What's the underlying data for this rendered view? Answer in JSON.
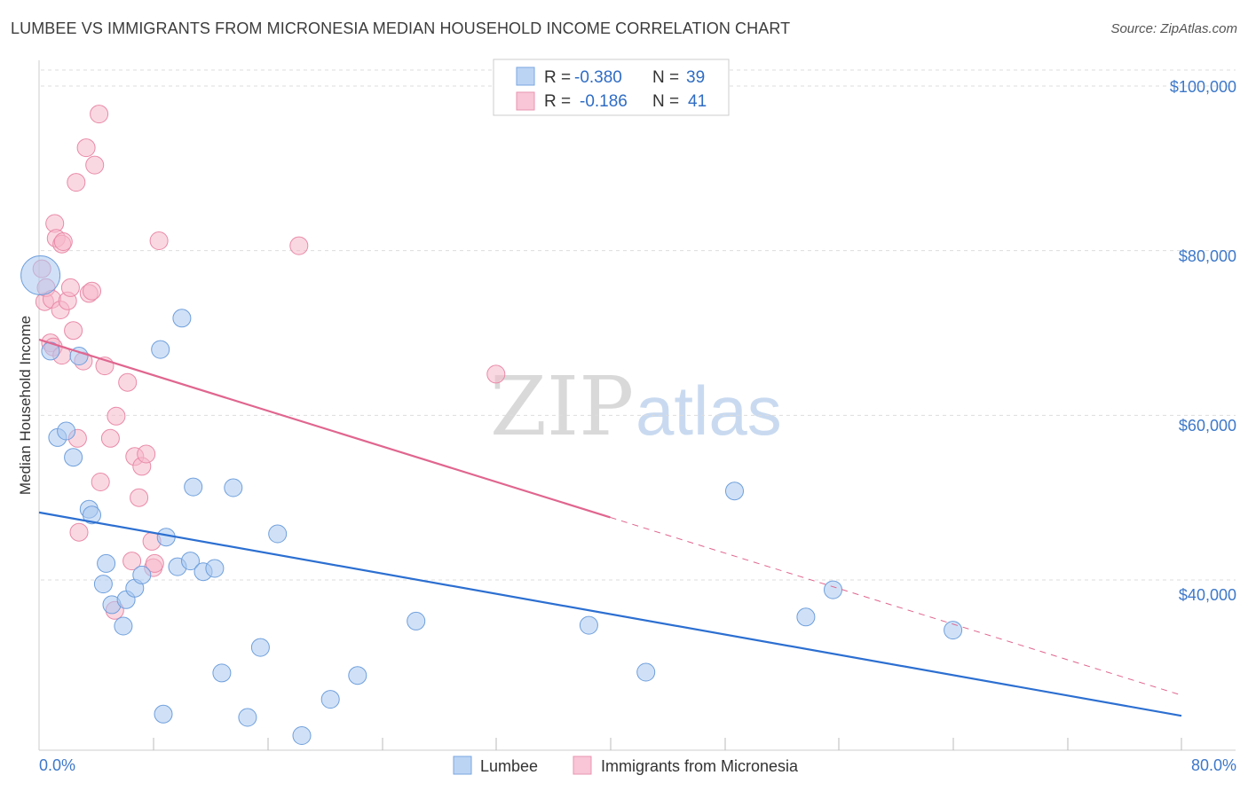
{
  "header": {
    "title": "LUMBEE VS IMMIGRANTS FROM MICRONESIA MEDIAN HOUSEHOLD INCOME CORRELATION CHART",
    "source": "Source: ZipAtlas.com"
  },
  "watermark": {
    "part1": "ZIP",
    "part2": "atlas"
  },
  "colors": {
    "lumbee_fill": "#a9c8f0",
    "lumbee_stroke": "#6f9fdc",
    "lumbee_line": "#2c6fd1",
    "micronesia_fill": "#f6b8cb",
    "micronesia_stroke": "#e98aa8",
    "micronesia_line": "#e0668f",
    "grid": "#dddddd",
    "axis_text": "#3d78c9"
  },
  "legend": {
    "rows": [
      {
        "r_label": "R =",
        "r_value": "-0.380",
        "n_label": "N =",
        "n_value": "39"
      },
      {
        "r_label": "R =",
        "r_value": "-0.186",
        "n_label": "N =",
        "n_value": "41"
      }
    ]
  },
  "chart_data": {
    "type": "scatter",
    "title": "LUMBEE VS IMMIGRANTS FROM MICRONESIA MEDIAN HOUSEHOLD INCOME CORRELATION CHART",
    "xlabel": "",
    "ylabel": "Median Household Income",
    "xlim": [
      0,
      80
    ],
    "ylim": [
      20000,
      104000
    ],
    "x_tick_labels": [
      "0.0%",
      "80.0%"
    ],
    "y_ticks": [
      40000,
      60000,
      80000,
      100000
    ],
    "y_tick_labels": [
      "$40,000",
      "$60,000",
      "$80,000",
      "$100,000"
    ],
    "grid": true,
    "legend_position": "bottom-center",
    "series": [
      {
        "name": "Lumbee",
        "r": -0.38,
        "n": 39,
        "trend": {
          "x0": 0,
          "y0": 48200,
          "x1": 80,
          "y1": 23500,
          "solid_until": 80
        },
        "points": [
          [
            0.1,
            77000,
            22
          ],
          [
            0.8,
            67800,
            10
          ],
          [
            2.8,
            67200,
            10
          ],
          [
            1.3,
            57300,
            10
          ],
          [
            1.9,
            58100,
            10
          ],
          [
            2.4,
            54900,
            10
          ],
          [
            3.5,
            48600,
            10
          ],
          [
            3.7,
            47900,
            10
          ],
          [
            4.7,
            42000,
            10
          ],
          [
            4.5,
            39500,
            10
          ],
          [
            5.1,
            37000,
            10
          ],
          [
            6.1,
            37600,
            10
          ],
          [
            6.7,
            39000,
            10
          ],
          [
            5.9,
            34400,
            10
          ],
          [
            7.2,
            40600,
            10
          ],
          [
            8.5,
            68000,
            10
          ],
          [
            8.7,
            23700,
            10
          ],
          [
            8.9,
            45200,
            10
          ],
          [
            9.7,
            41600,
            10
          ],
          [
            10.0,
            71800,
            10
          ],
          [
            10.6,
            42300,
            10
          ],
          [
            10.8,
            51300,
            10
          ],
          [
            11.5,
            41000,
            10
          ],
          [
            12.3,
            41400,
            10
          ],
          [
            12.8,
            28700,
            10
          ],
          [
            13.6,
            51200,
            10
          ],
          [
            14.6,
            23300,
            10
          ],
          [
            15.5,
            31800,
            10
          ],
          [
            16.7,
            45600,
            10
          ],
          [
            18.4,
            21100,
            10
          ],
          [
            20.4,
            25500,
            10
          ],
          [
            22.3,
            28400,
            10
          ],
          [
            26.4,
            35000,
            10
          ],
          [
            38.5,
            34500,
            10
          ],
          [
            42.5,
            28800,
            10
          ],
          [
            48.7,
            50800,
            10
          ],
          [
            53.7,
            35500,
            10
          ],
          [
            55.6,
            38800,
            10
          ],
          [
            64.0,
            33900,
            10
          ]
        ]
      },
      {
        "name": "Immigrants from Micronesia",
        "r": -0.186,
        "n": 41,
        "trend": {
          "x0": 0,
          "y0": 69200,
          "x1": 80,
          "y1": 26000,
          "solid_until": 40
        },
        "points": [
          [
            0.2,
            77800,
            10
          ],
          [
            0.4,
            73800,
            10
          ],
          [
            0.5,
            75500,
            10
          ],
          [
            0.8,
            68800,
            10
          ],
          [
            0.9,
            74100,
            10
          ],
          [
            1.0,
            68300,
            10
          ],
          [
            1.1,
            83300,
            10
          ],
          [
            1.2,
            81500,
            10
          ],
          [
            1.5,
            72800,
            10
          ],
          [
            1.6,
            67300,
            10
          ],
          [
            1.6,
            80800,
            10
          ],
          [
            1.7,
            81100,
            10
          ],
          [
            2.0,
            73900,
            10
          ],
          [
            2.2,
            75500,
            10
          ],
          [
            2.4,
            70300,
            10
          ],
          [
            2.6,
            88300,
            10
          ],
          [
            2.7,
            57200,
            10
          ],
          [
            2.8,
            45800,
            10
          ],
          [
            3.1,
            66600,
            10
          ],
          [
            3.3,
            92500,
            10
          ],
          [
            3.5,
            74800,
            10
          ],
          [
            3.7,
            75100,
            10
          ],
          [
            3.9,
            90400,
            10
          ],
          [
            4.2,
            96600,
            10
          ],
          [
            4.3,
            51900,
            10
          ],
          [
            4.6,
            66000,
            10
          ],
          [
            5.0,
            57200,
            10
          ],
          [
            5.3,
            36300,
            10
          ],
          [
            5.4,
            59900,
            10
          ],
          [
            6.2,
            64000,
            10
          ],
          [
            6.5,
            42300,
            10
          ],
          [
            6.7,
            55000,
            10
          ],
          [
            7.0,
            50000,
            10
          ],
          [
            7.2,
            53800,
            10
          ],
          [
            7.5,
            55300,
            10
          ],
          [
            7.9,
            44700,
            10
          ],
          [
            8.0,
            41500,
            10
          ],
          [
            8.1,
            42000,
            10
          ],
          [
            8.4,
            81200,
            10
          ],
          [
            18.2,
            80600,
            10
          ],
          [
            32.0,
            65000,
            10
          ]
        ]
      }
    ]
  },
  "axes": {
    "ylabel": "Median Household Income",
    "x_start": "0.0%",
    "x_end": "80.0%",
    "y_labels": [
      "$100,000",
      "$80,000",
      "$60,000",
      "$40,000"
    ]
  },
  "bottom_legend": {
    "items": [
      "Lumbee",
      "Immigrants from Micronesia"
    ]
  }
}
